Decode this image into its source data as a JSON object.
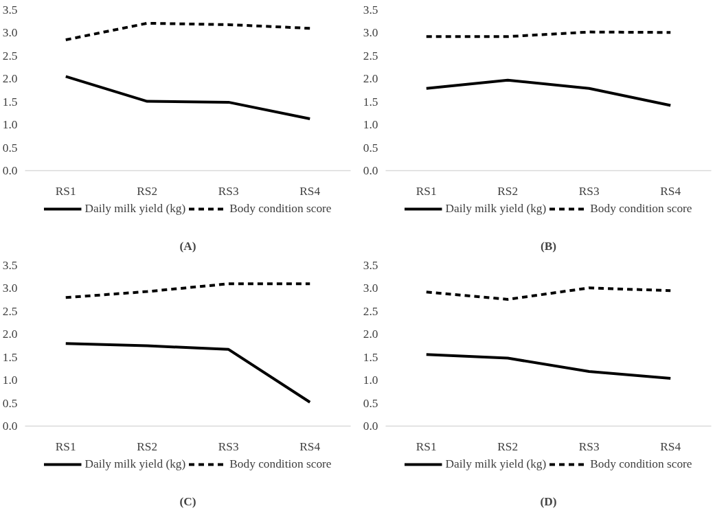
{
  "chart_data": [
    {
      "type": "line",
      "title": "(A)",
      "categories": [
        "RS1",
        "RS2",
        "RS3",
        "RS4"
      ],
      "ylim": [
        0,
        3.5
      ],
      "yticks": [
        {
          "value": 0,
          "label": "0.0"
        },
        0.5,
        {
          "value": 1,
          "label": "1.0"
        },
        1.5,
        {
          "value": 2,
          "label": "2.0"
        },
        2.5,
        {
          "value": 3,
          "label": "3.0"
        },
        3.5
      ],
      "grid": false,
      "legend": "bottom",
      "series": [
        {
          "name": "Daily milk yield (kg)",
          "color": "#000000",
          "line_style": "solid",
          "values": [
            2.05,
            1.51,
            1.49,
            1.13
          ]
        },
        {
          "name": "Body condition score",
          "color": "#000000",
          "line_style": "dashed",
          "values": [
            2.85,
            3.21,
            3.18,
            3.1
          ]
        }
      ]
    },
    {
      "type": "line",
      "title": "(B)",
      "categories": [
        "RS1",
        "RS2",
        "RS3",
        "RS4"
      ],
      "ylim": [
        0,
        3.5
      ],
      "yticks": [
        {
          "value": 0,
          "label": "0.0"
        },
        0.5,
        {
          "value": 1,
          "label": "1.0"
        },
        1.5,
        {
          "value": 2,
          "label": "2.0"
        },
        2.5,
        {
          "value": 3,
          "label": "3.0"
        },
        3.5
      ],
      "grid": false,
      "legend": "bottom",
      "series": [
        {
          "name": "Daily milk yield (kg)",
          "color": "#000000",
          "line_style": "solid",
          "values": [
            1.79,
            1.97,
            1.79,
            1.42
          ]
        },
        {
          "name": "Body condition score",
          "color": "#000000",
          "line_style": "dashed",
          "values": [
            2.92,
            2.92,
            3.02,
            3.01
          ]
        }
      ]
    },
    {
      "type": "line",
      "title": "(C)",
      "categories": [
        "RS1",
        "RS2",
        "RS3",
        "RS4"
      ],
      "ylim": [
        0,
        3.5
      ],
      "yticks": [
        {
          "value": 0,
          "label": "0.0"
        },
        0.5,
        {
          "value": 1,
          "label": "1.0"
        },
        1.5,
        {
          "value": 2,
          "label": "2.0"
        },
        2.5,
        {
          "value": 3,
          "label": "3.0"
        },
        3.5
      ],
      "grid": false,
      "legend": "bottom",
      "series": [
        {
          "name": "Daily milk yield (kg)",
          "color": "#000000",
          "line_style": "solid",
          "values": [
            1.8,
            1.75,
            1.67,
            0.52
          ]
        },
        {
          "name": "Body condition score",
          "color": "#000000",
          "line_style": "dashed",
          "values": [
            2.8,
            2.93,
            3.1,
            3.1
          ]
        }
      ]
    },
    {
      "type": "line",
      "title": "(D)",
      "categories": [
        "RS1",
        "RS2",
        "RS3",
        "RS4"
      ],
      "ylim": [
        0,
        3.5
      ],
      "yticks": [
        {
          "value": 0,
          "label": "0.0"
        },
        0.5,
        {
          "value": 1,
          "label": "1.0"
        },
        1.5,
        {
          "value": 2,
          "label": "2.0"
        },
        2.5,
        {
          "value": 3,
          "label": "3.0"
        },
        3.5
      ],
      "grid": false,
      "legend": "bottom",
      "series": [
        {
          "name": "Daily milk yield (kg)",
          "color": "#000000",
          "line_style": "solid",
          "values": [
            1.56,
            1.48,
            1.19,
            1.04
          ]
        },
        {
          "name": "Body condition score",
          "color": "#000000",
          "line_style": "dashed",
          "values": [
            2.92,
            2.76,
            3.01,
            2.95
          ]
        }
      ]
    }
  ]
}
